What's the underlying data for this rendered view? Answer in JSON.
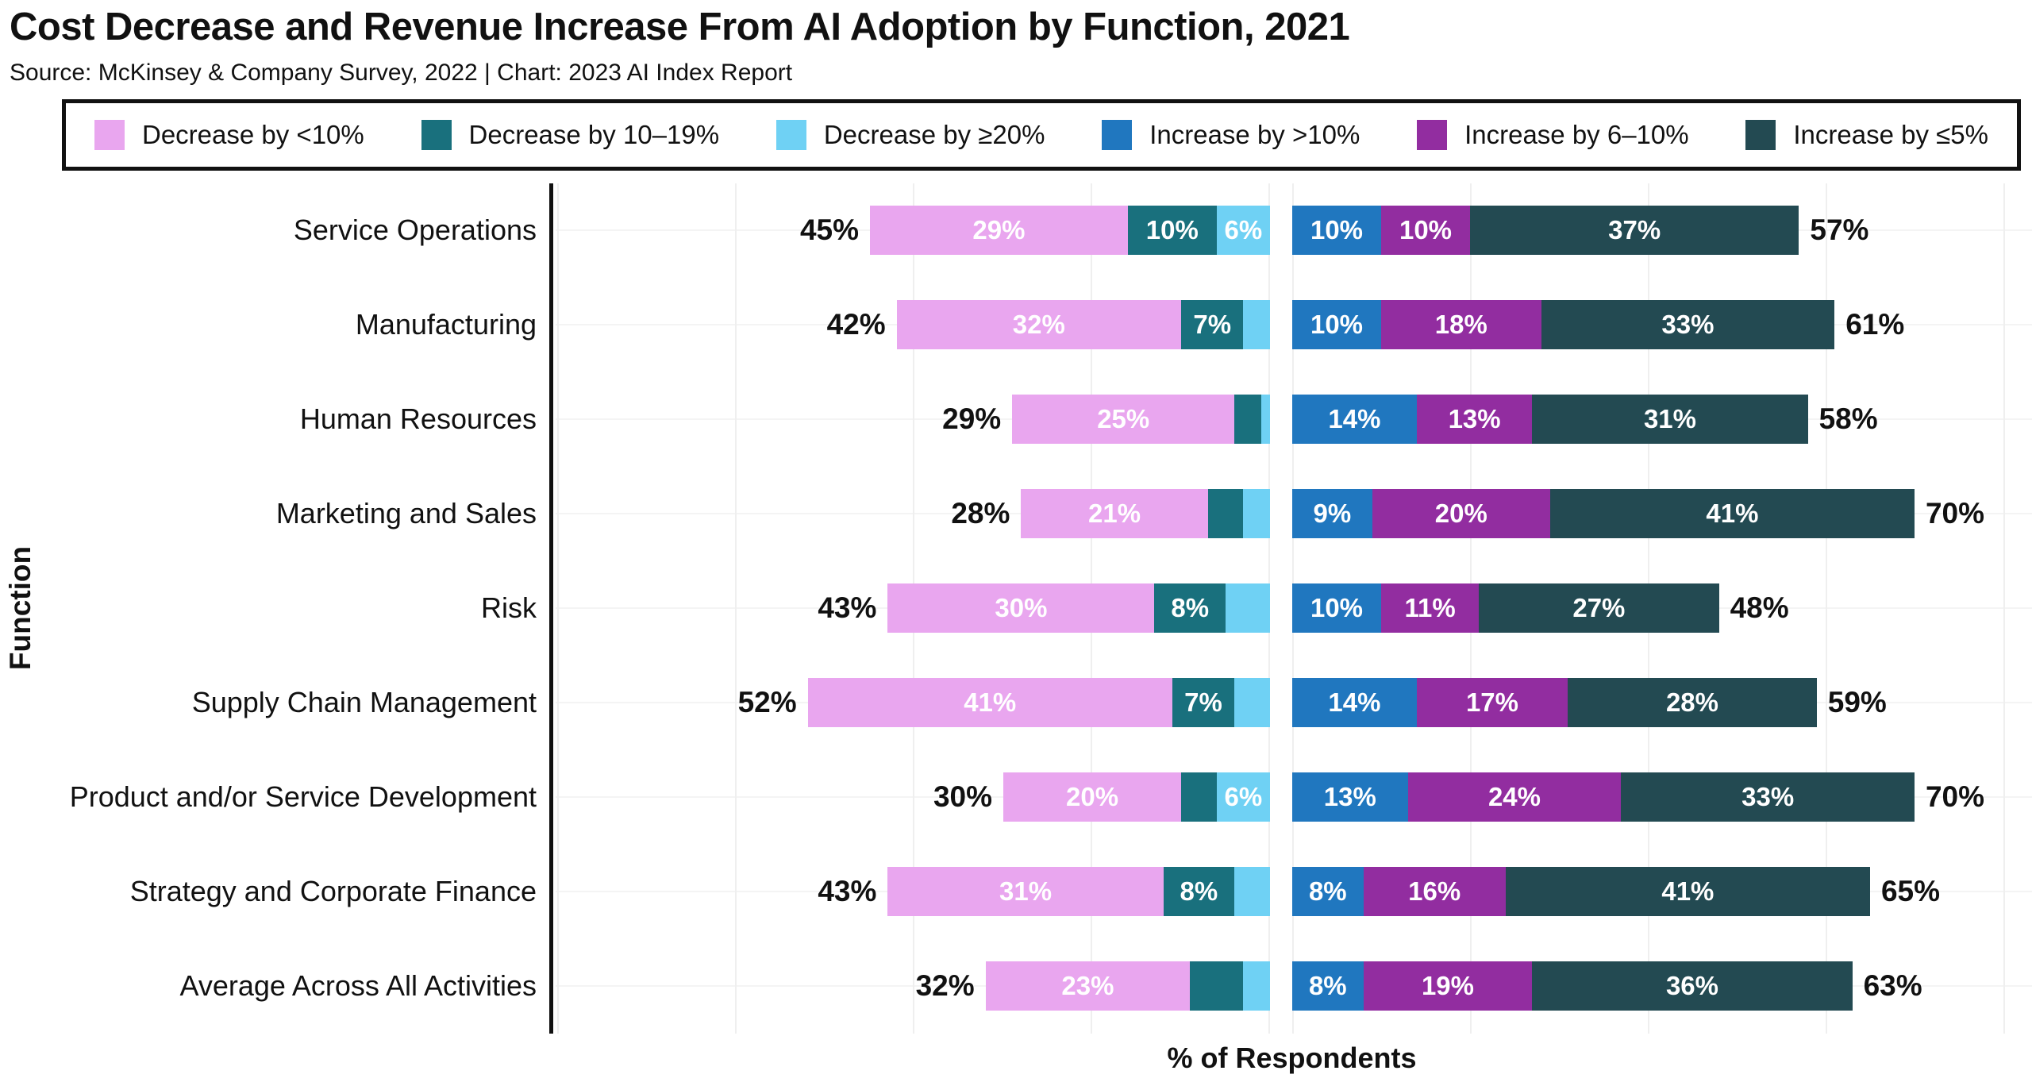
{
  "title": "Cost Decrease and Revenue Increase From AI Adoption by Function, 2021",
  "source": "Source: McKinsey & Company Survey, 2022 | Chart: 2023 AI Index Report",
  "colors": {
    "decrease_lt10": "#e9a6ef",
    "decrease_10_19": "#19707d",
    "decrease_ge20": "#6fd1f4",
    "increase_gt10": "#2077bf",
    "increase_6_10": "#922da0",
    "increase_le5": "#234a52",
    "axis": "#111111",
    "gridline": "#efefef",
    "bar_label_text": "#ffffff",
    "total_label_text": "#111111"
  },
  "legend": [
    {
      "label": "Decrease by <10%",
      "color_key": "decrease_lt10"
    },
    {
      "label": "Decrease by 10–19%",
      "color_key": "decrease_10_19"
    },
    {
      "label": "Decrease by ≥20%",
      "color_key": "decrease_ge20"
    },
    {
      "label": "Increase by >10%",
      "color_key": "increase_gt10"
    },
    {
      "label": "Increase by 6–10%",
      "color_key": "increase_6_10"
    },
    {
      "label": "Increase by ≤5%",
      "color_key": "increase_le5"
    }
  ],
  "chart_data": {
    "type": "bar",
    "subtype": "diverging-stacked-horizontal",
    "title": "Cost Decrease and Revenue Increase From AI Adoption by Function, 2021",
    "xlabel": "% of Respondents",
    "ylabel": "Function",
    "legend_position": "top",
    "grid": "vertical gridlines every 20%, faint horizontal gridline per category",
    "x_scale_pct_max_left": 80,
    "x_scale_pct_max_right": 80,
    "categories": [
      "Service Operations",
      "Manufacturing",
      "Human Resources",
      "Marketing and Sales",
      "Risk",
      "Supply Chain Management",
      "Product and/or Service Development",
      "Strategy and Corporate Finance",
      "Average Across All Activities"
    ],
    "left_series_names": [
      "Decrease by <10%",
      "Decrease by 10–19%",
      "Decrease by ≥20%"
    ],
    "right_series_names": [
      "Increase by >10%",
      "Increase by 6–10%",
      "Increase by ≤5%"
    ],
    "rows": [
      {
        "category": "Service Operations",
        "decrease": [
          29,
          10,
          6
        ],
        "decrease_labels": [
          "29%",
          "10%",
          "6%"
        ],
        "decrease_total": "45%",
        "increase": [
          10,
          10,
          37
        ],
        "increase_labels": [
          "10%",
          "10%",
          "37%"
        ],
        "increase_total": "57%"
      },
      {
        "category": "Manufacturing",
        "decrease": [
          32,
          7,
          3
        ],
        "decrease_labels": [
          "32%",
          "7%",
          ""
        ],
        "decrease_total": "42%",
        "increase": [
          10,
          18,
          33
        ],
        "increase_labels": [
          "10%",
          "18%",
          "33%"
        ],
        "increase_total": "61%"
      },
      {
        "category": "Human Resources",
        "decrease": [
          25,
          3,
          1
        ],
        "decrease_labels": [
          "25%",
          "",
          ""
        ],
        "decrease_total": "29%",
        "increase": [
          14,
          13,
          31
        ],
        "increase_labels": [
          "14%",
          "13%",
          "31%"
        ],
        "increase_total": "58%"
      },
      {
        "category": "Marketing and Sales",
        "decrease": [
          21,
          4,
          3
        ],
        "decrease_labels": [
          "21%",
          "",
          ""
        ],
        "decrease_total": "28%",
        "increase": [
          9,
          20,
          41
        ],
        "increase_labels": [
          "9%",
          "20%",
          "41%"
        ],
        "increase_total": "70%"
      },
      {
        "category": "Risk",
        "decrease": [
          30,
          8,
          5
        ],
        "decrease_labels": [
          "30%",
          "8%",
          ""
        ],
        "decrease_total": "43%",
        "increase": [
          10,
          11,
          27
        ],
        "increase_labels": [
          "10%",
          "11%",
          "27%"
        ],
        "increase_total": "48%"
      },
      {
        "category": "Supply Chain Management",
        "decrease": [
          41,
          7,
          4
        ],
        "decrease_labels": [
          "41%",
          "7%",
          ""
        ],
        "decrease_total": "52%",
        "increase": [
          14,
          17,
          28
        ],
        "increase_labels": [
          "14%",
          "17%",
          "28%"
        ],
        "increase_total": "59%"
      },
      {
        "category": "Product and/or Service Development",
        "decrease": [
          20,
          4,
          6
        ],
        "decrease_labels": [
          "20%",
          "",
          "6%"
        ],
        "decrease_total": "30%",
        "increase": [
          13,
          24,
          33
        ],
        "increase_labels": [
          "13%",
          "24%",
          "33%"
        ],
        "increase_total": "70%"
      },
      {
        "category": "Strategy and Corporate Finance",
        "decrease": [
          31,
          8,
          4
        ],
        "decrease_labels": [
          "31%",
          "8%",
          ""
        ],
        "decrease_total": "43%",
        "increase": [
          8,
          16,
          41
        ],
        "increase_labels": [
          "8%",
          "16%",
          "41%"
        ],
        "increase_total": "65%"
      },
      {
        "category": "Average Across All Activities",
        "decrease": [
          23,
          6,
          3
        ],
        "decrease_labels": [
          "23%",
          "",
          ""
        ],
        "decrease_total": "32%",
        "increase": [
          8,
          19,
          36
        ],
        "increase_labels": [
          "8%",
          "19%",
          "36%"
        ],
        "increase_total": "63%"
      }
    ]
  }
}
